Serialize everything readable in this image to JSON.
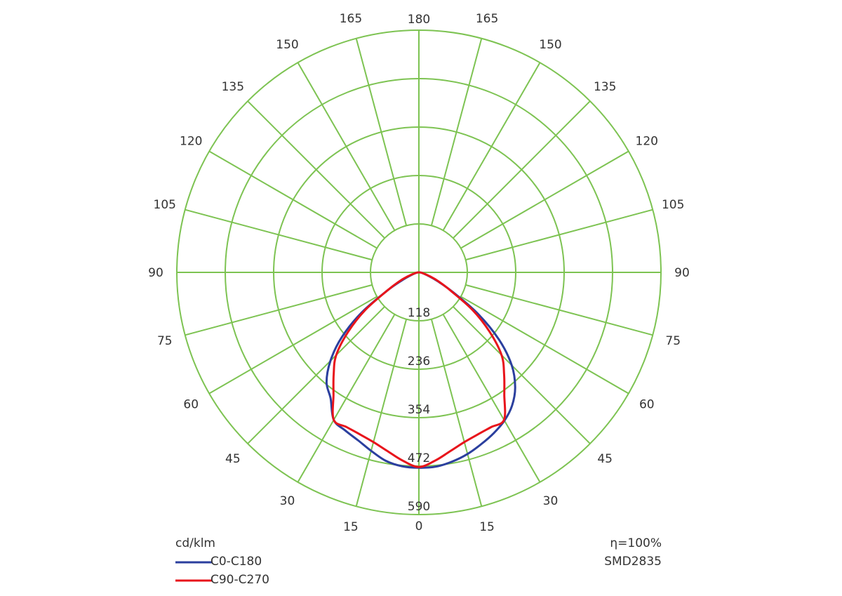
{
  "chart_data": {
    "type": "polar",
    "unit_label": "cd/klm",
    "radial_ticks": [
      118,
      236,
      354,
      472,
      590
    ],
    "radial_range": [
      0,
      590
    ],
    "angle_ticks": [
      0,
      15,
      30,
      45,
      60,
      75,
      90,
      105,
      120,
      135,
      150,
      165,
      180
    ],
    "grid": true,
    "grid_color": "#7dc352",
    "legend_position": "bottom-left",
    "series": [
      {
        "name": "C0-C180",
        "color": "#2b3f9e",
        "angles": [
          -90,
          -80,
          -70,
          -65,
          -60,
          -55,
          -50,
          -45,
          -40,
          -35,
          -30,
          -25,
          -20,
          -15,
          -10,
          -5,
          0,
          5,
          10,
          15,
          20,
          25,
          30,
          35,
          40,
          45,
          50,
          55,
          60,
          65,
          70,
          80,
          90
        ],
        "values": [
          0,
          7,
          22,
          45,
          90,
          170,
          245,
          305,
          350,
          375,
          415,
          425,
          435,
          450,
          466,
          474,
          476,
          475,
          468,
          458,
          445,
          432,
          417,
          396,
          365,
          320,
          255,
          175,
          95,
          50,
          25,
          8,
          0
        ]
      },
      {
        "name": "C90-C270",
        "color": "#e8141b",
        "angles": [
          -90,
          -80,
          -70,
          -65,
          -60,
          -55,
          -50,
          -45,
          -40,
          -35,
          -30,
          -25,
          -20,
          -15,
          -10,
          -5,
          0,
          5,
          10,
          15,
          20,
          25,
          30,
          35,
          40,
          45,
          50,
          55,
          60,
          65,
          70,
          80,
          90
        ],
        "values": [
          0,
          8,
          30,
          55,
          90,
          160,
          225,
          285,
          323,
          363,
          415,
          416,
          420,
          428,
          442,
          460,
          474,
          460,
          442,
          428,
          420,
          416,
          415,
          363,
          323,
          285,
          225,
          160,
          90,
          55,
          30,
          8,
          0
        ]
      }
    ],
    "annotations": [
      "η=100%",
      "SMD2835"
    ]
  }
}
